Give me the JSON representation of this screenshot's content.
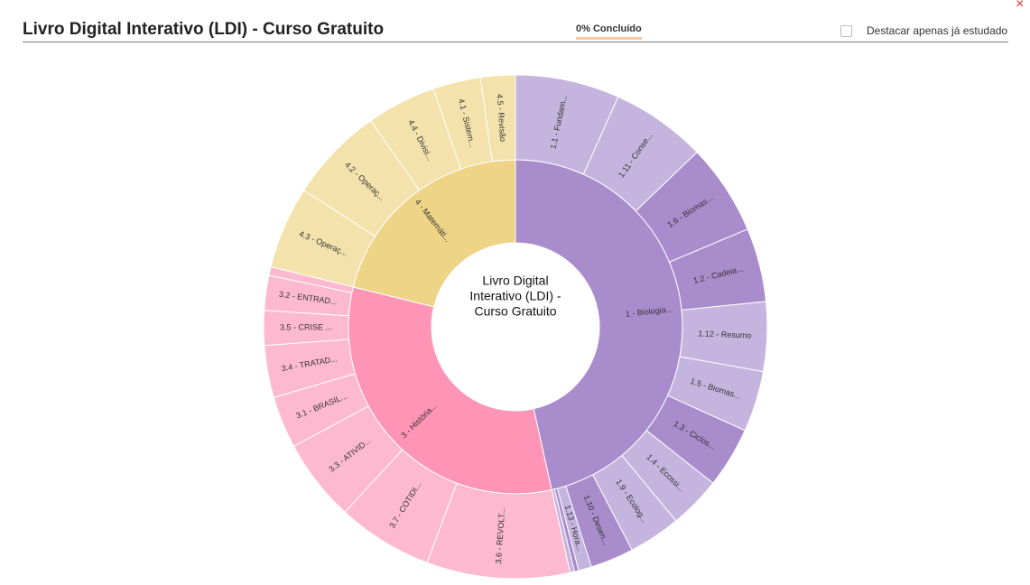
{
  "header": {
    "title": "Livro Digital Interativo (LDI) - Curso Gratuito",
    "progress": "0% Concluído",
    "checkbox_label": "Destacar apenas já estudado",
    "close": "×"
  },
  "chart_data": {
    "type": "sunburst",
    "center_label": [
      "Livro Digital",
      "Interativo (LDI) -",
      "Curso Gratuito"
    ],
    "series": [
      {
        "name": "1 - Biologia...",
        "color": "#a98ccc",
        "value": 167,
        "children": [
          {
            "name": "1.1 - Fundam...",
            "value": 24,
            "color": "#c5b4de"
          },
          {
            "name": "1.11 - Conse...",
            "value": 22,
            "color": "#c5b4de"
          },
          {
            "name": "1.6 - Biomas...",
            "value": 21,
            "color": "#a98ccc"
          },
          {
            "name": "1.2 - Cadeia...",
            "value": 17,
            "color": "#a98ccc"
          },
          {
            "name": "1.12 - Resumo",
            "value": 16,
            "color": "#c5b4de"
          },
          {
            "name": "1.5 - Biomas...",
            "value": 14,
            "color": "#c5b4de"
          },
          {
            "name": "1.3 - Ciclos...",
            "value": 14,
            "color": "#a98ccc"
          },
          {
            "name": "1.4 - Ecossi...",
            "value": 12,
            "color": "#c5b4de"
          },
          {
            "name": "1.9 - Ecolog...",
            "value": 12,
            "color": "#c5b4de"
          },
          {
            "name": "1.10 - Desen...",
            "value": 10,
            "color": "#a98ccc"
          },
          {
            "name": "1.13 - Hora...",
            "value": 3,
            "color": "#c5b4de"
          },
          {
            "name": null,
            "value": 1,
            "color": "#a98ccc"
          },
          {
            "name": null,
            "value": 1,
            "color": "#c5b4de"
          }
        ]
      },
      {
        "name": "3 - História...",
        "color": "#fe94b6",
        "value": 116,
        "children": [
          {
            "name": "3.6 - REVOLT...",
            "value": 33,
            "color": "#fdb9cf"
          },
          {
            "name": "3.7 - COTIDI...",
            "value": 22,
            "color": "#fdb9cf"
          },
          {
            "name": "3.3 - ATIVID...",
            "value": 19,
            "color": "#fdb9cf"
          },
          {
            "name": "3.1 - BRASIL...",
            "value": 12,
            "color": "#fdb9cf"
          },
          {
            "name": "3.4 - TRATAD...",
            "value": 12,
            "color": "#fdb9cf"
          },
          {
            "name": "3.5 - CRISE ...",
            "value": 8,
            "color": "#fdb9cf"
          },
          {
            "name": "3.2 - ENTRAD...",
            "value": 8,
            "color": "#fdb9cf"
          },
          {
            "name": null,
            "value": 2,
            "color": "#fdb9cf"
          }
        ]
      },
      {
        "name": "4 - Matemáti...",
        "color": "#eed486",
        "value": 76,
        "children": [
          {
            "name": "4.3 - Operaç...",
            "value": 19,
            "color": "#f4e2ac"
          },
          {
            "name": "4.2 - Operaç...",
            "value": 22,
            "color": "#f4e2ac"
          },
          {
            "name": "4.4 - Divisi...",
            "value": 16,
            "color": "#f4e2ac"
          },
          {
            "name": "4.1 - Sistem...",
            "value": 11,
            "color": "#f4e2ac"
          },
          {
            "name": "4.5 - Revisão",
            "value": 8,
            "color": "#f4e2ac"
          }
        ]
      }
    ]
  }
}
